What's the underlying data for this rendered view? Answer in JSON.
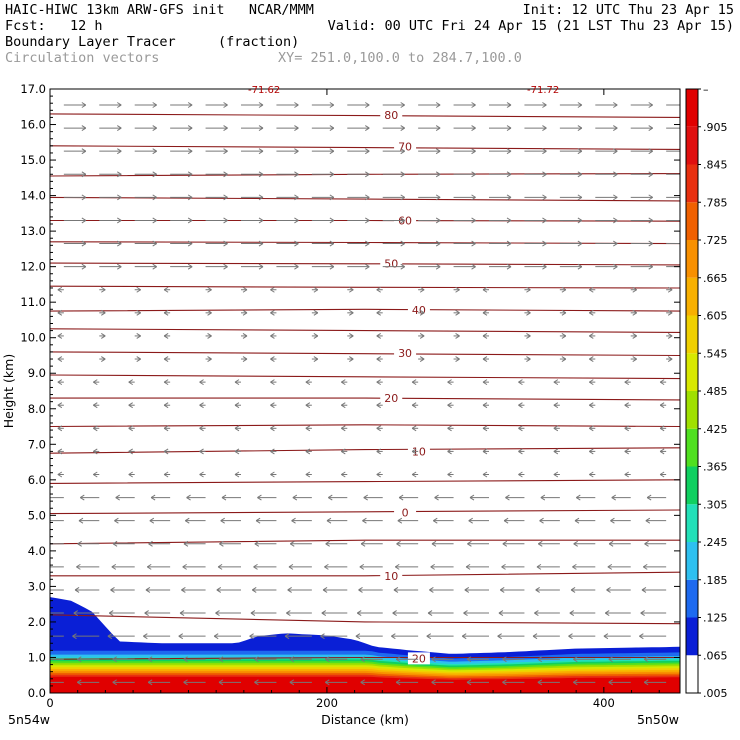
{
  "header": {
    "line1_left": "HAIC-HIWC 13km ARW-GFS init   NCAR/MMM",
    "line1_right": "Init: 12 UTC Thu 23 Apr 15",
    "line2_left": "Fcst:   12 h",
    "line2_right": "Valid: 00 UTC Fri 24 Apr 15 (21 LST Thu 23 Apr 15)",
    "field_name": "Boundary Layer Tracer",
    "field_units": "(fraction)",
    "vector_label": "Circulation vectors",
    "xy_label": "XY= 251.0,100.0 to 284.7,100.0"
  },
  "chart_data": {
    "type": "area",
    "xlabel": "Distance (km)",
    "ylabel": "Height (km)",
    "xlim": [
      0,
      455
    ],
    "ylim": [
      0,
      17
    ],
    "x_ticks": [
      "0",
      "200",
      "400"
    ],
    "y_ticks": [
      "0.0",
      "1.0",
      "2.0",
      "3.0",
      "4.0",
      "5.0",
      "6.0",
      "7.0",
      "8.0",
      "9.0",
      "10.0",
      "11.0",
      "12.0",
      "13.0",
      "14.0",
      "15.0",
      "16.0",
      "17.0"
    ],
    "x_endpoint_labels": [
      "5n54w",
      "5n50w"
    ],
    "tracer_top_profile": {
      "x": [
        0,
        15,
        30,
        50,
        80,
        110,
        135,
        150,
        170,
        200,
        220,
        235,
        260,
        290,
        330,
        380,
        455
      ],
      "y": [
        2.7,
        2.6,
        2.3,
        1.45,
        1.4,
        1.4,
        1.4,
        1.6,
        1.68,
        1.62,
        1.5,
        1.3,
        1.2,
        1.1,
        1.15,
        1.25,
        1.3
      ]
    },
    "temperature_contours": [
      {
        "label": "80",
        "y": [
          16.3,
          16.25,
          16.2
        ]
      },
      {
        "label": "70",
        "y": [
          15.4,
          15.35,
          15.3
        ]
      },
      {
        "label": "",
        "y": [
          14.55,
          14.6,
          14.62
        ]
      },
      {
        "label": "",
        "y": [
          13.95,
          13.9,
          13.85
        ]
      },
      {
        "label": "60",
        "y": [
          13.3,
          13.3,
          13.28
        ]
      },
      {
        "label": "",
        "y": [
          12.7,
          12.68,
          12.65
        ]
      },
      {
        "label": "50",
        "y": [
          12.1,
          12.08,
          12.05
        ]
      },
      {
        "label": "",
        "y": [
          11.45,
          11.42,
          11.4
        ]
      },
      {
        "label": "40",
        "y": [
          10.75,
          10.8,
          10.75
        ]
      },
      {
        "label": "",
        "y": [
          10.25,
          10.2,
          10.15
        ]
      },
      {
        "label": "30",
        "y": [
          9.6,
          9.55,
          9.5
        ]
      },
      {
        "label": "",
        "y": [
          8.95,
          8.9,
          8.85
        ]
      },
      {
        "label": "20",
        "y": [
          8.3,
          8.3,
          8.25
        ]
      },
      {
        "label": "",
        "y": [
          7.5,
          7.55,
          7.5
        ]
      },
      {
        "label": "10",
        "y": [
          6.75,
          6.85,
          6.9
        ]
      },
      {
        "label": "",
        "y": [
          5.9,
          5.95,
          6.0
        ]
      },
      {
        "label": "0",
        "y": [
          5.05,
          5.1,
          5.15
        ]
      },
      {
        "label": "",
        "y": [
          4.2,
          4.3,
          4.3
        ]
      },
      {
        "label": "10",
        "y": [
          3.3,
          3.3,
          3.4
        ]
      },
      {
        "label": "",
        "y": [
          2.2,
          2.0,
          1.95
        ]
      },
      {
        "label": "20",
        "y": [
          0.95,
          1.0,
          1.0
        ]
      }
    ],
    "top_marker_labels": [
      "-71.62",
      "-71.72"
    ],
    "colorbar": {
      "colors": [
        "#ffffff",
        "#0a1fd6",
        "#1e6af0",
        "#2ec0f0",
        "#22e0b8",
        "#10d060",
        "#50e020",
        "#a0e000",
        "#d8e800",
        "#f0d000",
        "#f8b000",
        "#f89000",
        "#f06000",
        "#e83010",
        "#e01010",
        "#e00000"
      ],
      "labels": [
        ".005",
        ".065",
        ".125",
        ".185",
        ".245",
        ".305",
        ".365",
        ".425",
        ".485",
        ".545",
        ".605",
        ".665",
        ".725",
        ".785",
        ".845",
        ".905",
        "–"
      ]
    },
    "wind_arrows": {
      "upper_direction": "east",
      "lower_direction": "west"
    },
    "grid": false,
    "legend": "none"
  }
}
